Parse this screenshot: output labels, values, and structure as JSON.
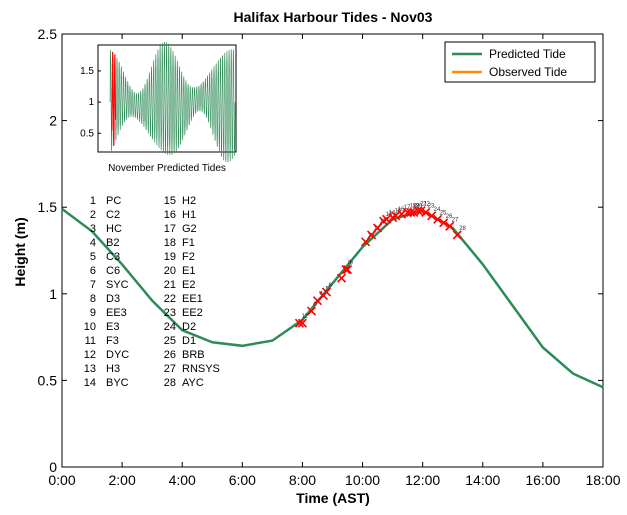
{
  "chart_data": {
    "type": "line",
    "title": "Halifax Harbour Tides - Nov03",
    "xlabel": "Time (AST)",
    "ylabel": "Height (m)",
    "xlim": [
      0,
      18
    ],
    "ylim": [
      0,
      2.5
    ],
    "x_ticks": [
      "0:00",
      "2:00",
      "4:00",
      "6:00",
      "8:00",
      "10:00",
      "12:00",
      "14:00",
      "16:00",
      "18:00"
    ],
    "y_ticks": [
      "0",
      "0.5",
      "1",
      "1.5",
      "2",
      "2.5"
    ],
    "grid": false,
    "legend_position": "top-right",
    "colors": {
      "predicted": "#2e8b57",
      "observed": "#ff8c00",
      "marker": "#ff0000"
    },
    "series": [
      {
        "name": "Predicted Tide",
        "x": [
          0,
          1,
          2,
          3,
          4,
          5,
          6,
          7,
          8,
          9,
          10,
          11,
          12,
          13,
          14,
          15,
          16,
          17,
          18
        ],
        "y": [
          1.49,
          1.36,
          1.17,
          0.96,
          0.79,
          0.72,
          0.7,
          0.73,
          0.85,
          1.06,
          1.27,
          1.43,
          1.48,
          1.38,
          1.17,
          0.93,
          0.69,
          0.54,
          0.46
        ]
      },
      {
        "name": "Observed Tide",
        "x": [
          7.9,
          8.0,
          8.3,
          8.5,
          8.7,
          8.8,
          9.3,
          9.45,
          9.5,
          10.1,
          10.3,
          10.5,
          10.7,
          10.8,
          11.0,
          11.1,
          11.3,
          11.5,
          11.6,
          11.7,
          11.85,
          11.95,
          12.1,
          12.3,
          12.5,
          12.7,
          12.9,
          13.15
        ],
        "y": [
          0.83,
          0.83,
          0.9,
          0.96,
          0.99,
          1.01,
          1.09,
          1.14,
          1.14,
          1.3,
          1.34,
          1.38,
          1.42,
          1.43,
          1.44,
          1.45,
          1.46,
          1.47,
          1.47,
          1.47,
          1.48,
          1.48,
          1.47,
          1.45,
          1.43,
          1.41,
          1.39,
          1.34
        ]
      }
    ],
    "stations": [
      {
        "n": "1",
        "code": "PC"
      },
      {
        "n": "2",
        "code": "C2"
      },
      {
        "n": "3",
        "code": "HC"
      },
      {
        "n": "4",
        "code": "B2"
      },
      {
        "n": "5",
        "code": "C3"
      },
      {
        "n": "6",
        "code": "C6"
      },
      {
        "n": "7",
        "code": "SYC"
      },
      {
        "n": "8",
        "code": "D3"
      },
      {
        "n": "9",
        "code": "EE3"
      },
      {
        "n": "10",
        "code": "E3"
      },
      {
        "n": "11",
        "code": "F3"
      },
      {
        "n": "12",
        "code": "DYC"
      },
      {
        "n": "13",
        "code": "H3"
      },
      {
        "n": "14",
        "code": "BYC"
      },
      {
        "n": "15",
        "code": "H2"
      },
      {
        "n": "16",
        "code": "H1"
      },
      {
        "n": "17",
        "code": "G2"
      },
      {
        "n": "18",
        "code": "F1"
      },
      {
        "n": "19",
        "code": "F2"
      },
      {
        "n": "20",
        "code": "E1"
      },
      {
        "n": "21",
        "code": "E2"
      },
      {
        "n": "22",
        "code": "EE1"
      },
      {
        "n": "23",
        "code": "EE2"
      },
      {
        "n": "24",
        "code": "D2"
      },
      {
        "n": "25",
        "code": "D1"
      },
      {
        "n": "26",
        "code": "BRB"
      },
      {
        "n": "27",
        "code": "RNSYS"
      },
      {
        "n": "28",
        "code": "AYC"
      }
    ],
    "inset": {
      "caption": "November Predicted Tides",
      "ylim": [
        0.2,
        1.9
      ],
      "y_ticks": [
        "1.5",
        "1",
        "0.5"
      ],
      "highlight_color": "#ff0000"
    }
  }
}
